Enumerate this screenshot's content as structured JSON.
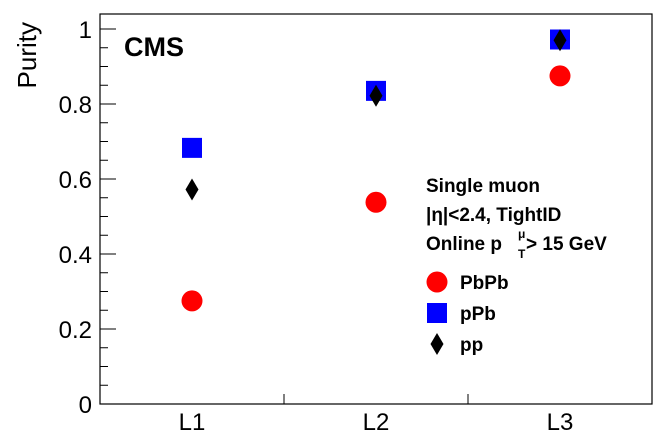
{
  "chart_data": {
    "type": "scatter",
    "categories": [
      "L1",
      "L2",
      "L3"
    ],
    "ylabel": "Purity",
    "xlabel": "",
    "ylim": [
      0,
      1.04
    ],
    "yticks": [
      "0",
      "0.2",
      "0.4",
      "0.6",
      "0.8",
      "1"
    ],
    "experiment_label": "CMS",
    "annotation_lines": [
      "Single muon",
      "|η|<2.4, TightID"
    ],
    "annotation_online": {
      "prefix": "Online p",
      "sup": "μ",
      "sub": "T",
      "suffix": " > 15 GeV"
    },
    "legend_position": "right",
    "series": [
      {
        "name": "PbPb",
        "marker": "circle",
        "color": "#ff0000",
        "values": [
          0.275,
          0.538,
          0.875
        ]
      },
      {
        "name": "pPb",
        "marker": "square",
        "color": "#0000ff",
        "values": [
          0.683,
          0.835,
          0.972
        ]
      },
      {
        "name": "pp",
        "marker": "diamond",
        "color": "#000000",
        "values": [
          0.572,
          0.822,
          0.97
        ]
      }
    ]
  }
}
